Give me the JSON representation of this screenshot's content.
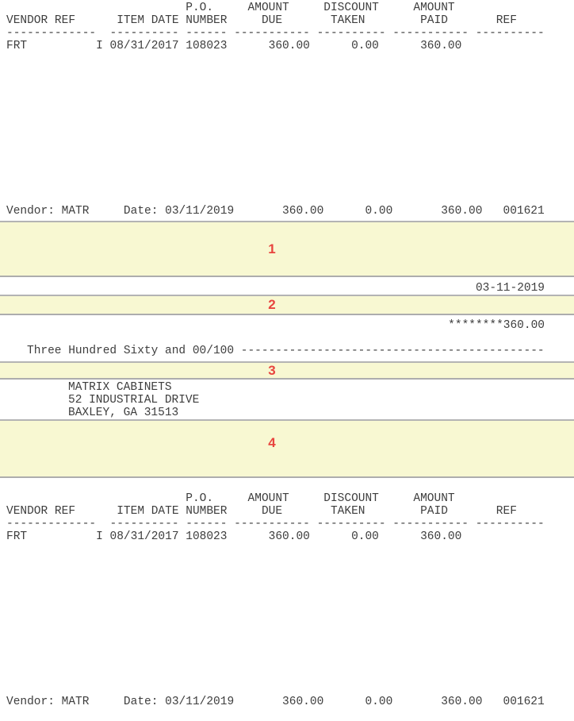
{
  "colors": {
    "band_background": "#f8f8d2",
    "band_border": "#b4b4b4",
    "region_number_red": "#e8453f",
    "text": "#3e3e3e"
  },
  "stub": {
    "lines": [
      "                          P.O.     AMOUNT     DISCOUNT     AMOUNT",
      "VENDOR REF      ITEM DATE NUMBER     DUE       TAKEN        PAID       REF",
      "-------------  ---------- ------ ----------- ---------- ----------- ----------",
      "FRT          I 08/31/2017 108023      360.00      0.00      360.00",
      "",
      "",
      "",
      "",
      "",
      "",
      "",
      "",
      "",
      "",
      "",
      "",
      "Vendor: MATR     Date: 03/11/2019       360.00      0.00       360.00   001621"
    ],
    "columns": [
      "VENDOR REF",
      "ITEM DATE",
      "P.O. NUMBER",
      "AMOUNT DUE",
      "DISCOUNT TAKEN",
      "AMOUNT PAID",
      "REF"
    ],
    "row": {
      "vendor_ref": "FRT",
      "type": "I",
      "item_date": "08/31/2017",
      "po_number": "108023",
      "amount_due": "360.00",
      "discount_taken": "0.00",
      "amount_paid": "360.00"
    },
    "summary": {
      "vendor": "MATR",
      "date": "03/11/2019",
      "amount_due": "360.00",
      "discount_taken": "0.00",
      "amount_paid": "360.00",
      "check_ref": "001621"
    }
  },
  "check": {
    "date": "03-11-2019",
    "amount_numeric": "********360.00",
    "amount_words": "Three Hundred Sixty and 00/100 --------------------------------------------",
    "payee_lines": [
      "MATRIX CABINETS",
      "52 INDUSTRIAL DRIVE",
      "BAXLEY, GA 31513"
    ],
    "regions": [
      "1",
      "2",
      "3",
      "4"
    ]
  }
}
